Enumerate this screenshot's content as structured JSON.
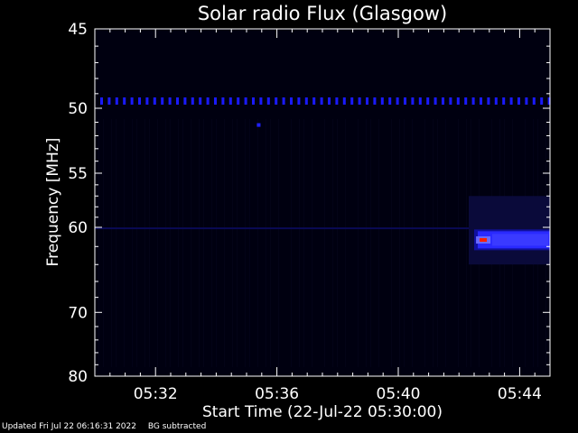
{
  "chart_data": {
    "type": "heatmap",
    "title": "Solar radio Flux (Glasgow)",
    "ylabel": "Frequency [MHz]",
    "xlabel": "Start Time (22-Jul-22 05:30:00)",
    "y_ticks": [
      "45",
      "50",
      "55",
      "60",
      "70",
      "80"
    ],
    "y_tick_values": [
      45,
      50,
      55,
      60,
      70,
      80
    ],
    "x_ticks": [
      "05:32",
      "05:36",
      "05:40",
      "05:44"
    ],
    "x_tick_values_min": [
      2,
      6,
      10,
      14
    ],
    "xlim_min": [
      0,
      15
    ],
    "ylim_mhz": [
      45,
      80
    ],
    "y_scale": "reciprocal",
    "features": [
      {
        "kind": "interference-line",
        "freq_mhz": 49.5,
        "t_start_min": 0,
        "t_end_min": 15,
        "color": "#1a1aff"
      },
      {
        "kind": "faint-line",
        "freq_mhz": 60.1,
        "t_start_min": 0,
        "t_end_min": 12.5,
        "color": "#0a0a55"
      },
      {
        "kind": "burst-band",
        "freq_mhz_low": 60.4,
        "freq_mhz_high": 62.2,
        "t_start_min": 12.5,
        "t_end_min": 15,
        "color": "#2a2aff"
      },
      {
        "kind": "hot-spot",
        "freq_mhz": 61.3,
        "t_min": 12.8,
        "color": "#ff2000"
      },
      {
        "kind": "dot",
        "freq_mhz": 51.2,
        "t_min": 5.4,
        "color": "#2020ff"
      }
    ],
    "colors": {
      "background": "#000000",
      "plot_bg": "#000010",
      "axes": "#ffffff"
    }
  },
  "footer": {
    "updated": "Updated Fri Jul 22 06:16:31 2022",
    "note": "BG subtracted"
  }
}
